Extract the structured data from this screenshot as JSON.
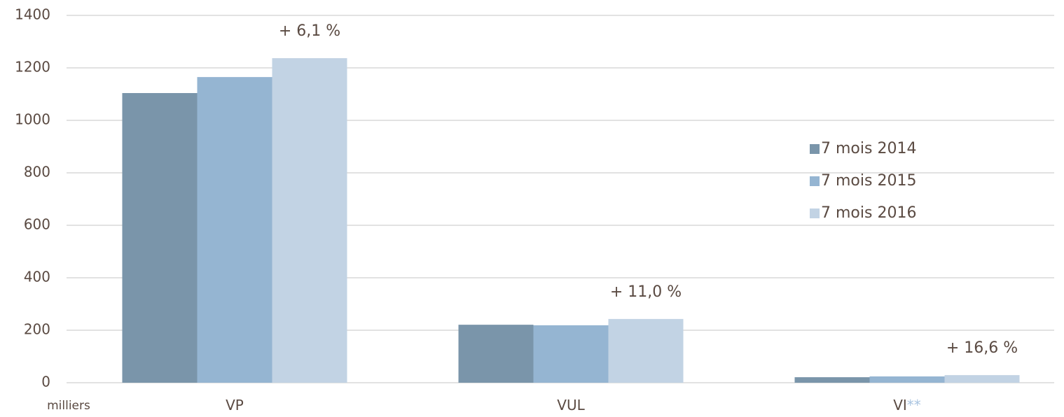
{
  "chart_data": {
    "type": "bar",
    "categories": [
      "VP",
      "VUL",
      "VI"
    ],
    "category_note": {
      "text": "**",
      "color": "#a9c4e0"
    },
    "unit_label": "milliers",
    "series": [
      {
        "name": "7 mois 2014",
        "color": "#7a95aa",
        "values": [
          1104,
          221,
          21
        ]
      },
      {
        "name": "7 mois 2015",
        "color": "#95b5d2",
        "values": [
          1165,
          219,
          24
        ]
      },
      {
        "name": "7 mois 2016",
        "color": "#c2d3e4",
        "values": [
          1237,
          243,
          29
        ]
      }
    ],
    "annotations": [
      "+ 6,1 %",
      "+ 11,0 %",
      "+ 16,6 %"
    ],
    "ylim": [
      0,
      1400
    ],
    "yticks": [
      0,
      200,
      400,
      600,
      800,
      1000,
      1200,
      1400
    ],
    "grid": true,
    "legend": "right"
  }
}
